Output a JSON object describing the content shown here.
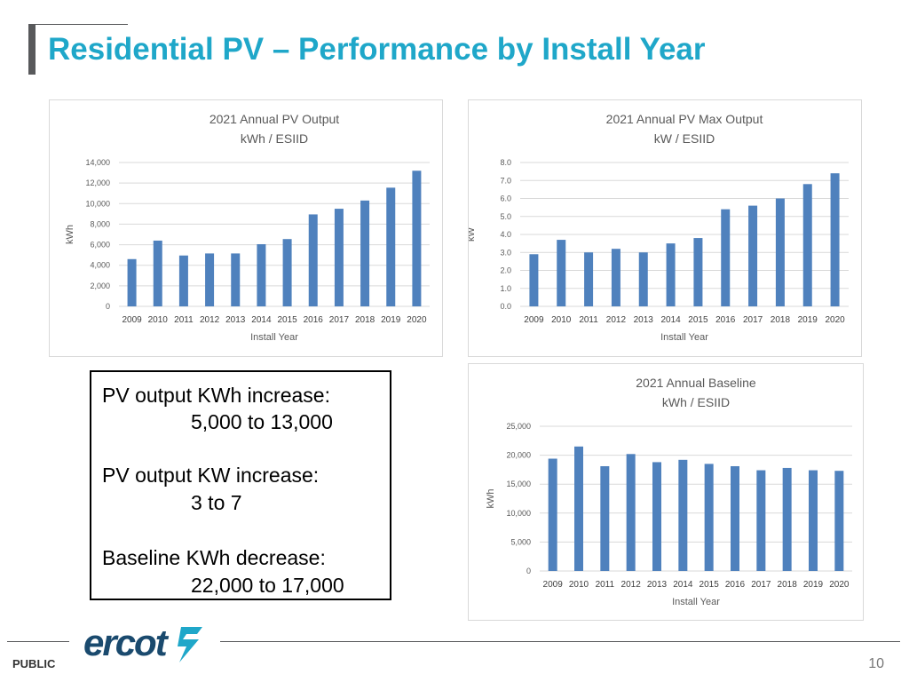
{
  "slide": {
    "title": "Residential PV – Performance by Install Year",
    "footer_label": "PUBLIC",
    "page_number": "10",
    "logo_text": "ercot"
  },
  "colors": {
    "title": "#1fa7c9",
    "bar": "#4f81bd",
    "grid": "#d9d9d9"
  },
  "notes": {
    "line1": "PV output KWh increase:",
    "line1_value": "5,000 to 13,000",
    "line2": "PV output KW increase:",
    "line2_value": "3 to 7",
    "line3": "Baseline KWh decrease:",
    "line3_value": "22,000 to 17,000"
  },
  "chart_data": [
    {
      "type": "bar",
      "title": "2021 Annual PV Output",
      "subtitle": "kWh / ESIID",
      "xlabel": "Install Year",
      "ylabel": "kWh",
      "categories": [
        "2009",
        "2010",
        "2011",
        "2012",
        "2013",
        "2014",
        "2015",
        "2016",
        "2017",
        "2018",
        "2019",
        "2020"
      ],
      "values": [
        4600,
        6400,
        4950,
        5150,
        5150,
        6050,
        6550,
        8950,
        9500,
        10300,
        11550,
        13200
      ],
      "ylim": [
        0,
        14000
      ],
      "yticks": [
        0,
        2000,
        4000,
        6000,
        8000,
        10000,
        12000,
        14000
      ],
      "tick_labels": [
        "0",
        "2,000",
        "4,000",
        "6,000",
        "8,000",
        "10,000",
        "12,000",
        "14,000"
      ]
    },
    {
      "type": "bar",
      "title": "2021 Annual PV Max Output",
      "subtitle": "kW / ESIID",
      "xlabel": "Install Year",
      "ylabel": "kW",
      "categories": [
        "2009",
        "2010",
        "2011",
        "2012",
        "2013",
        "2014",
        "2015",
        "2016",
        "2017",
        "2018",
        "2019",
        "2020"
      ],
      "values": [
        2.9,
        3.7,
        3.0,
        3.2,
        3.0,
        3.5,
        3.8,
        5.4,
        5.6,
        6.0,
        6.8,
        7.4
      ],
      "ylim": [
        0,
        8
      ],
      "yticks": [
        0,
        1,
        2,
        3,
        4,
        5,
        6,
        7,
        8
      ],
      "tick_labels": [
        "0.0",
        "1.0",
        "2.0",
        "3.0",
        "4.0",
        "5.0",
        "6.0",
        "7.0",
        "8.0"
      ]
    },
    {
      "type": "bar",
      "title": "2021 Annual Baseline",
      "subtitle": "kWh / ESIID",
      "xlabel": "Install Year",
      "ylabel": "kWh",
      "categories": [
        "2009",
        "2010",
        "2011",
        "2012",
        "2013",
        "2014",
        "2015",
        "2016",
        "2017",
        "2018",
        "2019",
        "2020"
      ],
      "values": [
        19400,
        21500,
        18100,
        20200,
        18800,
        19200,
        18500,
        18100,
        17400,
        17800,
        17400,
        17300
      ],
      "ylim": [
        0,
        25000
      ],
      "yticks": [
        0,
        5000,
        10000,
        15000,
        20000,
        25000
      ],
      "tick_labels": [
        "0",
        "5,000",
        "10,000",
        "15,000",
        "20,000",
        "25,000"
      ]
    }
  ]
}
